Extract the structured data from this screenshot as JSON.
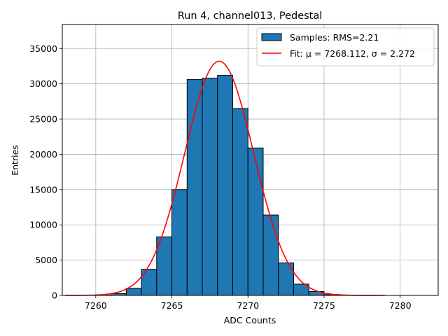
{
  "chart_data": {
    "type": "bar",
    "title": "Run 4, channel013, Pedestal",
    "xlabel": "ADC Counts",
    "ylabel": "Entries",
    "xlim": [
      7257.8,
      7282.5
    ],
    "ylim": [
      0,
      38400
    ],
    "x_ticks": [
      7260,
      7265,
      7270,
      7275,
      7280
    ],
    "y_ticks": [
      0,
      5000,
      10000,
      15000,
      20000,
      25000,
      30000,
      35000
    ],
    "grid": true,
    "legend_position": "top-right",
    "bin_width": 1,
    "bin_edges_left": [
      7260,
      7261,
      7262,
      7263,
      7264,
      7265,
      7266,
      7267,
      7268,
      7269,
      7270,
      7271,
      7272,
      7273,
      7274,
      7275,
      7276
    ],
    "values": [
      40,
      250,
      1000,
      3700,
      8300,
      15000,
      30600,
      30800,
      31200,
      26500,
      20900,
      11400,
      4600,
      1600,
      550,
      120,
      30
    ],
    "series": [
      {
        "name": "Samples: RMS=2.21",
        "kind": "histogram",
        "color": "#1f77b4",
        "edgecolor": "#000000"
      },
      {
        "name": "Fit: μ = 7268.112, σ = 2.272",
        "kind": "line",
        "color": "#ff0000",
        "model": "gaussian",
        "amplitude": 33200,
        "mu": 7268.112,
        "sigma": 2.272,
        "x_range": [
          7258,
          7279
        ]
      }
    ]
  }
}
